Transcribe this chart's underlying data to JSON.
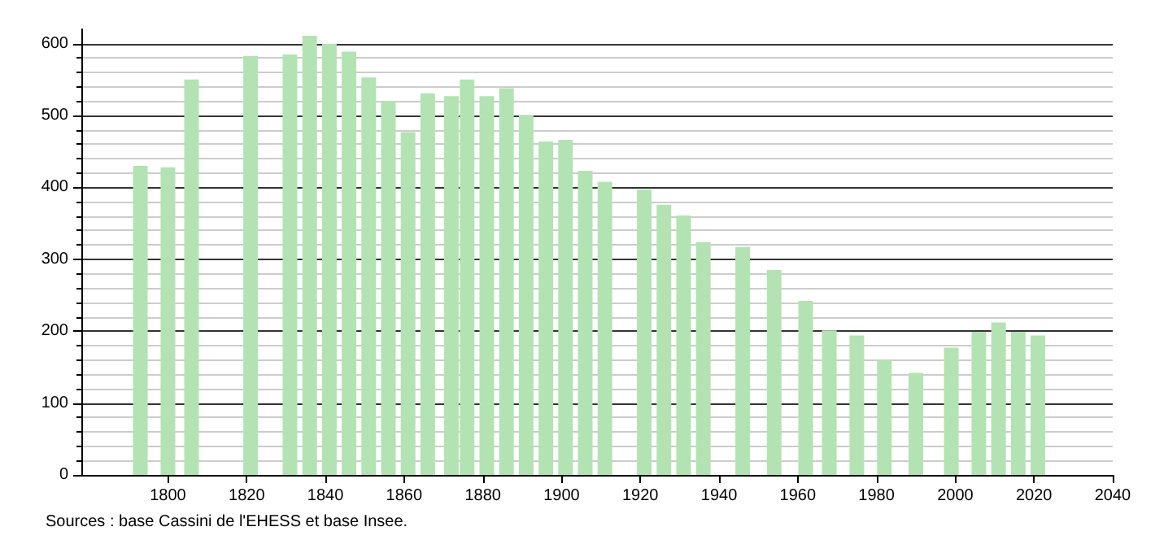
{
  "chart_data": {
    "type": "bar",
    "x": [
      1793,
      1800,
      1806,
      1821,
      1831,
      1836,
      1841,
      1846,
      1851,
      1856,
      1861,
      1866,
      1872,
      1876,
      1881,
      1886,
      1891,
      1896,
      1901,
      1906,
      1911,
      1921,
      1926,
      1931,
      1936,
      1946,
      1954,
      1962,
      1968,
      1975,
      1982,
      1990,
      1999,
      2006,
      2011,
      2016,
      2021
    ],
    "values": [
      430,
      428,
      550,
      583,
      585,
      611,
      600,
      589,
      553,
      520,
      477,
      531,
      527,
      550,
      527,
      538,
      501,
      464,
      466,
      423,
      408,
      397,
      376,
      361,
      324,
      317,
      285,
      242,
      201,
      194,
      160,
      142,
      177,
      199,
      212,
      199,
      194
    ],
    "color": "#b3e3b3",
    "xlim": [
      1778,
      2040
    ],
    "xticks": [
      1800,
      1820,
      1840,
      1860,
      1880,
      1900,
      1920,
      1940,
      1960,
      1980,
      2000,
      2020,
      2040
    ],
    "ylim": [
      0,
      620
    ],
    "yticks": [
      0,
      100,
      200,
      300,
      400,
      500,
      600
    ],
    "grid": "y",
    "annotations": [
      "Sources : base Cassini de l'EHESS et base Insee."
    ]
  }
}
